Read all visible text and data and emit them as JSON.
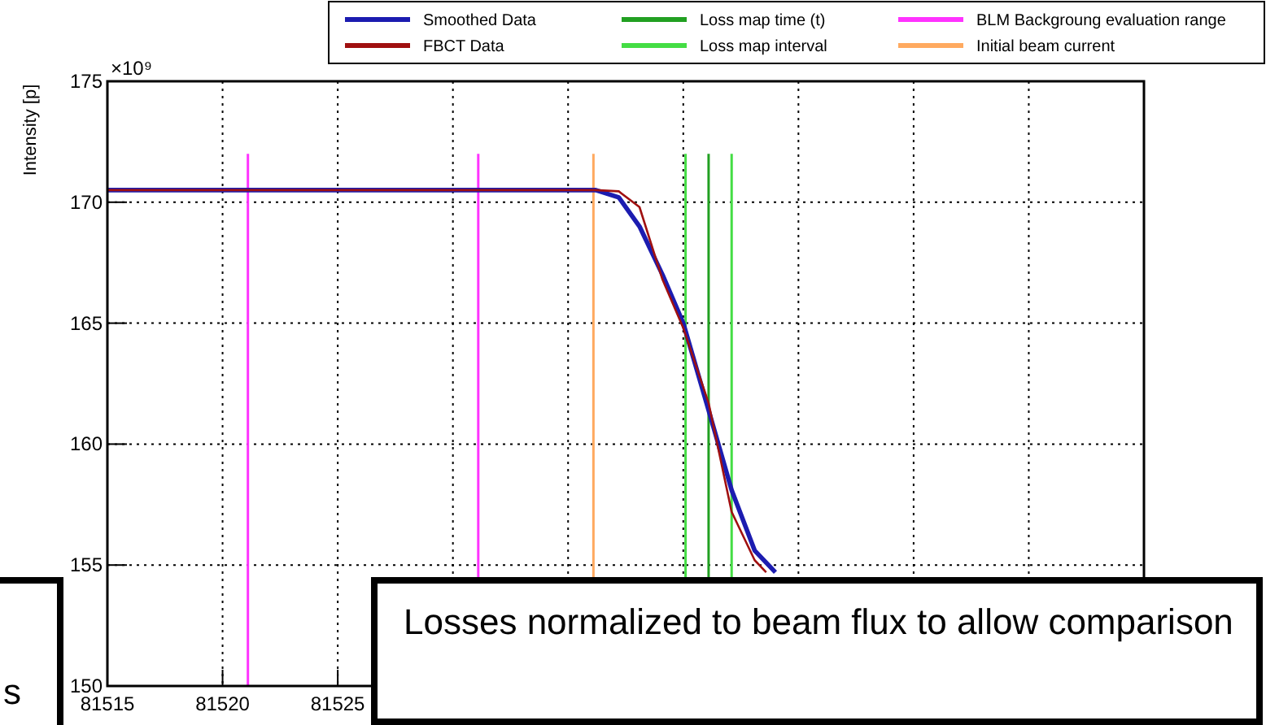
{
  "chart_data": {
    "type": "line",
    "ylabel": "Intensity [p]",
    "xlim": [
      81515,
      81560
    ],
    "ylim": [
      150,
      175
    ],
    "xticks": [
      81515,
      81520,
      81525,
      {
        "value": 81530,
        "label": null
      },
      {
        "value": 81535,
        "label": null
      },
      {
        "value": 81540,
        "label": null
      },
      {
        "value": 81545,
        "label": null
      },
      {
        "value": 81550,
        "label": null
      },
      {
        "value": 81555,
        "label": null
      },
      {
        "value": 81560,
        "label": null
      }
    ],
    "yticks": [
      150,
      155,
      160,
      165,
      170,
      175
    ],
    "grid": true,
    "legend": "top right",
    "line_style": "solid",
    "marker": "none",
    "series": [
      {
        "name": "Smoothed Data",
        "color": "#1c1cb0",
        "x": [
          81515,
          81536.2,
          81537.2,
          81538.1,
          81539.1,
          81540.0,
          81541.1,
          81542.1,
          81543.1,
          81544.0
        ],
        "values": [
          170.5,
          170.5,
          170.2,
          169.0,
          167.0,
          165.0,
          161.4,
          158.1,
          155.6,
          154.7
        ]
      },
      {
        "name": "FBCT Data",
        "color": "#a01010",
        "x": [
          81515,
          81536.2,
          81537.2,
          81538.1,
          81539.1,
          81540.0,
          81541.1,
          81542.1,
          81543.1,
          81543.6
        ],
        "values": [
          170.5,
          170.5,
          170.45,
          169.8,
          166.8,
          164.8,
          161.7,
          157.2,
          155.2,
          154.7
        ]
      }
    ],
    "ref_lines": [
      {
        "axis": "x",
        "value": 81541.1,
        "label": "Loss map time (t)",
        "color": "#22a022"
      },
      {
        "axis": "x",
        "value": 81540.1,
        "label": "Loss map interval",
        "color": "#44dd44"
      },
      {
        "axis": "x",
        "value": 81542.1,
        "label": null,
        "color": "#44dd44"
      },
      {
        "axis": "x",
        "value": 81521.1,
        "label": "BLM Backgroung evaluation range",
        "color": "#ff33ff"
      },
      {
        "axis": "x",
        "value": 81531.1,
        "label": null,
        "color": "#ff33ff"
      },
      {
        "axis": "x",
        "value": 81536.1,
        "label": "Initial beam current",
        "color": "#ffaa60"
      }
    ],
    "annotations": [
      "×10⁹",
      "s",
      "Losses normalized to beam flux to allow comparison"
    ]
  }
}
